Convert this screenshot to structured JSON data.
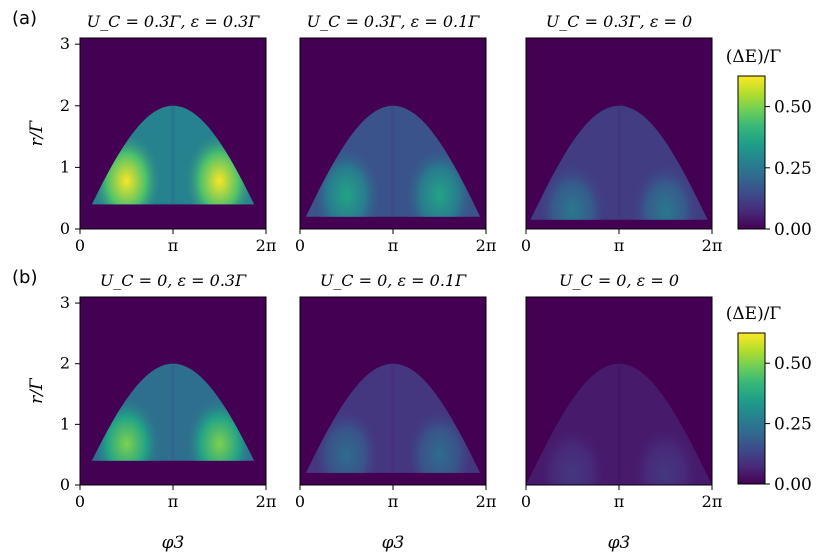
{
  "chart_data": {
    "type": "heatmap",
    "rows": [
      {
        "label": "(a)",
        "ylabel": "r/Γ",
        "xlabel": "",
        "colorbar": {
          "label": "(ΔE)/Γ",
          "ticks": [
            "0.00",
            "0.25",
            "0.50"
          ],
          "range": [
            0,
            0.625
          ]
        },
        "panels": [
          {
            "title": "U_C = 0.3Γ, ε = 0.3Γ",
            "r_min": 0.4,
            "peak": 0.62,
            "peak_r": 0.78
          },
          {
            "title": "U_C = 0.3Γ, ε = 0.1Γ",
            "r_min": 0.2,
            "peak": 0.36,
            "peak_r": 0.55
          },
          {
            "title": "U_C = 0.3Γ, ε = 0",
            "r_min": 0.15,
            "peak": 0.25,
            "peak_r": 0.3
          }
        ]
      },
      {
        "label": "(b)",
        "ylabel": "r/Γ",
        "xlabel": "φ3",
        "colorbar": {
          "label": "(ΔE)/Γ",
          "ticks": [
            "0.00",
            "0.25",
            "0.50"
          ],
          "range": [
            0,
            0.625
          ]
        },
        "panels": [
          {
            "title": "U_C = 0, ε = 0.3Γ",
            "r_min": 0.4,
            "peak": 0.5,
            "peak_r": 0.68
          },
          {
            "title": "U_C = 0, ε = 0.1Γ",
            "r_min": 0.2,
            "peak": 0.22,
            "peak_r": 0.5
          },
          {
            "title": "U_C = 0, ε = 0",
            "r_min": 0.0,
            "peak": 0.1,
            "peak_r": 0.2
          }
        ]
      }
    ],
    "x_ticks": [
      "0",
      "π",
      "2π"
    ],
    "x_range": [
      "0",
      "2π"
    ],
    "y_ticks": [
      "0",
      "1",
      "2",
      "3"
    ],
    "y_range": [
      0,
      3.1
    ],
    "dome_top": 2.0,
    "colormap": "viridis",
    "colormap_stops": [
      "#440154",
      "#482878",
      "#3e4989",
      "#31688e",
      "#26828e",
      "#1f9e89",
      "#35b779",
      "#6ece58",
      "#b5de2b",
      "#fde725"
    ]
  }
}
